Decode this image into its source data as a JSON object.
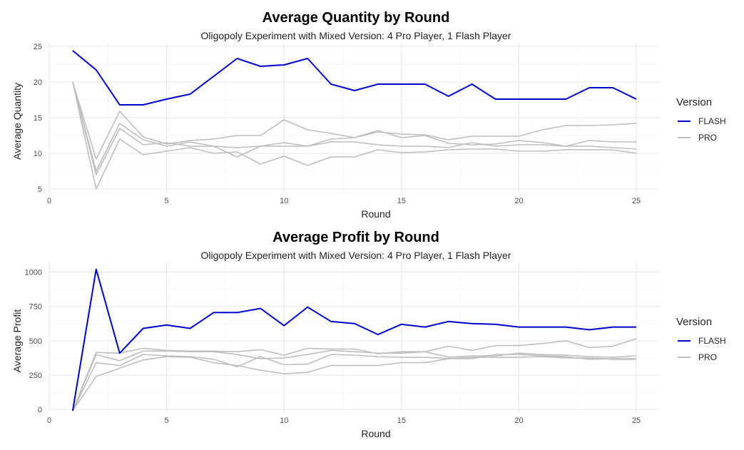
{
  "chart_data": [
    {
      "type": "line",
      "title": "Average Quantity by Round",
      "subtitle": "Oligopoly Experiment with Mixed Version: 4 Pro Player, 1 Flash Player",
      "xlabel": "Round",
      "ylabel": "Average Quantity",
      "xlim": [
        0,
        26
      ],
      "ylim": [
        4.5,
        25.5
      ],
      "x_ticks": [
        0,
        5,
        10,
        15,
        20,
        25
      ],
      "x_tick_labels": [
        "0",
        "5",
        "10",
        "15",
        "20",
        "25"
      ],
      "y_ticks": [
        5,
        10,
        15,
        20,
        25
      ],
      "y_tick_labels": [
        "5",
        "10",
        "15",
        "20",
        "25"
      ],
      "grid": true,
      "legend": {
        "title": "Version",
        "position": "right",
        "entries": [
          {
            "label": "FLASH",
            "color": "#0000cd"
          },
          {
            "label": "PRO",
            "color": "#bebebe"
          }
        ]
      },
      "x": [
        1,
        2,
        3,
        4,
        5,
        6,
        7,
        8,
        9,
        10,
        11,
        12,
        13,
        14,
        15,
        16,
        17,
        18,
        19,
        20,
        21,
        22,
        23,
        24,
        25
      ],
      "series": [
        {
          "version": "FLASH",
          "color": "#0000cd",
          "values": [
            24.4,
            21.7,
            16.8,
            16.8,
            17.6,
            18.3,
            20.8,
            23.3,
            22.2,
            22.4,
            23.3,
            19.7,
            18.8,
            19.7,
            19.7,
            19.7,
            18.0,
            19.7,
            17.6,
            17.6,
            17.6,
            17.6,
            19.2,
            19.2,
            17.6
          ]
        },
        {
          "version": "PRO",
          "color": "#bebebe",
          "values": [
            20.0,
            9.2,
            15.9,
            12.3,
            11.3,
            11.8,
            12.0,
            12.5,
            12.5,
            14.7,
            13.3,
            12.8,
            12.2,
            13.0,
            12.7,
            12.6,
            11.9,
            12.4,
            12.4,
            12.4,
            13.3,
            13.9,
            13.9,
            14.0,
            14.2
          ]
        },
        {
          "version": "PRO",
          "color": "#bebebe",
          "values": [
            20.0,
            7.5,
            14.2,
            11.9,
            11.0,
            11.6,
            11.0,
            10.8,
            11.0,
            11.5,
            11.0,
            12.0,
            12.2,
            13.2,
            12.2,
            12.5,
            11.4,
            11.2,
            11.3,
            11.8,
            11.5,
            11.0,
            11.8,
            11.6,
            11.6
          ]
        },
        {
          "version": "PRO",
          "color": "#bebebe",
          "values": [
            20.0,
            7.0,
            13.5,
            11.2,
            11.5,
            11.0,
            11.0,
            9.5,
            11.0,
            11.0,
            11.0,
            11.6,
            11.6,
            11.2,
            11.0,
            11.0,
            10.8,
            11.5,
            11.0,
            11.2,
            11.2,
            11.0,
            11.0,
            10.8,
            10.6
          ]
        },
        {
          "version": "PRO",
          "color": "#bebebe",
          "values": [
            20.0,
            5.0,
            12.0,
            9.8,
            10.3,
            10.8,
            10.0,
            10.2,
            8.5,
            9.6,
            8.3,
            9.5,
            9.5,
            10.5,
            10.1,
            10.2,
            10.5,
            10.6,
            10.6,
            10.3,
            10.3,
            10.5,
            10.5,
            10.5,
            10.0
          ]
        }
      ]
    },
    {
      "type": "line",
      "title": "Average Profit by Round",
      "subtitle": "Oligopoly Experiment with Mixed Version: 4 Pro Player, 1 Flash Player",
      "xlabel": "Round",
      "ylabel": "Average Profit",
      "xlim": [
        0,
        26
      ],
      "ylim": [
        -20,
        1070
      ],
      "x_ticks": [
        0,
        5,
        10,
        15,
        20,
        25
      ],
      "x_tick_labels": [
        "0",
        "5",
        "10",
        "15",
        "20",
        "25"
      ],
      "y_ticks": [
        0,
        250,
        500,
        750,
        1000
      ],
      "y_tick_labels": [
        "0",
        "250",
        "500",
        "750",
        "1000"
      ],
      "grid": true,
      "legend": {
        "title": "Version",
        "position": "right",
        "entries": [
          {
            "label": "FLASH",
            "color": "#0000cd"
          },
          {
            "label": "PRO",
            "color": "#bebebe"
          }
        ]
      },
      "x": [
        1,
        2,
        3,
        4,
        5,
        6,
        7,
        8,
        9,
        10,
        11,
        12,
        13,
        14,
        15,
        16,
        17,
        18,
        19,
        20,
        21,
        22,
        23,
        24,
        25
      ],
      "series": [
        {
          "version": "FLASH",
          "color": "#0000cd",
          "values": [
            -10,
            1020,
            410,
            590,
            615,
            590,
            705,
            705,
            735,
            610,
            745,
            640,
            625,
            545,
            620,
            600,
            640,
            625,
            620,
            600,
            600,
            600,
            580,
            600,
            600
          ]
        },
        {
          "version": "PRO",
          "color": "#bebebe",
          "values": [
            -10,
            415,
            410,
            445,
            430,
            425,
            425,
            420,
            435,
            395,
            445,
            440,
            440,
            405,
            420,
            420,
            460,
            430,
            465,
            465,
            480,
            500,
            450,
            460,
            515
          ]
        },
        {
          "version": "PRO",
          "color": "#bebebe",
          "values": [
            -10,
            400,
            355,
            425,
            425,
            420,
            420,
            400,
            370,
            375,
            400,
            430,
            420,
            410,
            410,
            420,
            380,
            390,
            390,
            410,
            400,
            395,
            385,
            380,
            390
          ]
        },
        {
          "version": "PRO",
          "color": "#bebebe",
          "values": [
            -10,
            340,
            320,
            400,
            390,
            385,
            365,
            310,
            385,
            325,
            330,
            400,
            395,
            385,
            380,
            380,
            370,
            380,
            380,
            380,
            385,
            375,
            375,
            365,
            365
          ]
        },
        {
          "version": "PRO",
          "color": "#bebebe",
          "values": [
            -10,
            240,
            300,
            360,
            385,
            380,
            340,
            320,
            285,
            260,
            270,
            320,
            320,
            320,
            340,
            340,
            370,
            370,
            400,
            400,
            390,
            385,
            365,
            370,
            370
          ]
        }
      ]
    }
  ]
}
